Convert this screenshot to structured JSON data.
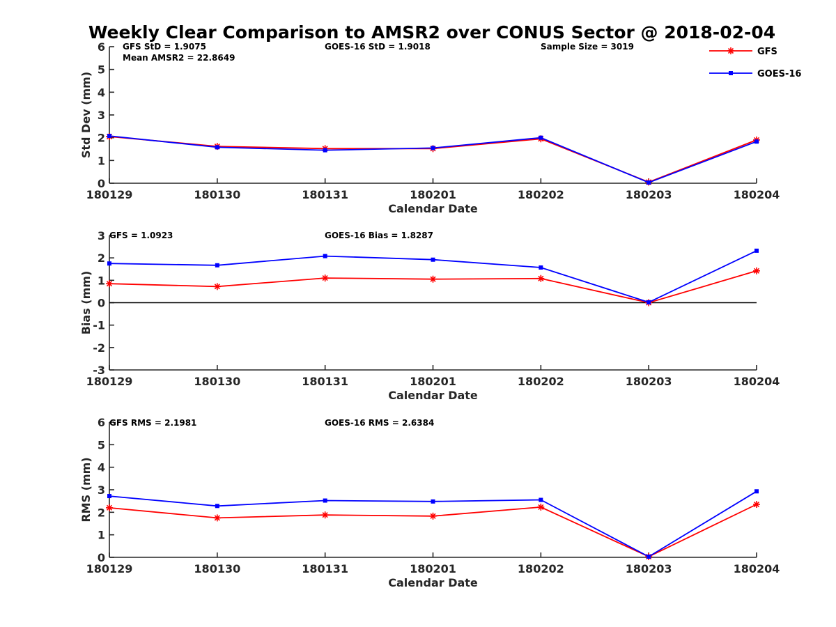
{
  "figure_title": "Weekly Clear Comparison to AMSR2 over CONUS Sector @ 2018-02-04",
  "colors": {
    "gfs": "#ff0000",
    "goes16": "#0000ff",
    "axis": "#262626",
    "zero_line": "#000000"
  },
  "legend": {
    "placement": "top-right",
    "items": [
      {
        "label": "GFS",
        "marker": "asterisk",
        "color": "#ff0000"
      },
      {
        "label": "GOES-16",
        "marker": "square",
        "color": "#0000ff"
      }
    ]
  },
  "chart_data": [
    {
      "type": "line",
      "xlabel": "Calendar Date",
      "ylabel": "Std Dev (mm)",
      "categories": [
        "180129",
        "180130",
        "180131",
        "180201",
        "180202",
        "180203",
        "180204"
      ],
      "ylim": [
        0,
        6
      ],
      "yticks": [
        "0",
        "1",
        "2",
        "3",
        "4",
        "5",
        "6"
      ],
      "series": [
        {
          "name": "GFS",
          "values": [
            2.05,
            1.62,
            1.52,
            1.52,
            1.95,
            0.05,
            1.9
          ]
        },
        {
          "name": "GOES-16",
          "values": [
            2.08,
            1.58,
            1.45,
            1.55,
            2.0,
            0.03,
            1.83
          ]
        }
      ],
      "zero_line": false,
      "annotations": [
        "GFS StD = 1.9075",
        "Mean AMSR2 = 22.8649",
        "GOES-16 StD = 1.9018",
        "Sample Size = 3019"
      ]
    },
    {
      "type": "line",
      "xlabel": "Calendar Date",
      "ylabel": "Bias (mm)",
      "categories": [
        "180129",
        "180130",
        "180131",
        "180201",
        "180202",
        "180203",
        "180204"
      ],
      "ylim": [
        -3,
        3
      ],
      "yticks": [
        "-3",
        "-2",
        "-1",
        "0",
        "1",
        "2",
        "3"
      ],
      "series": [
        {
          "name": "GFS",
          "values": [
            0.85,
            0.72,
            1.1,
            1.05,
            1.08,
            0.0,
            1.42
          ]
        },
        {
          "name": "GOES-16",
          "values": [
            1.75,
            1.67,
            2.08,
            1.92,
            1.57,
            0.02,
            2.32
          ]
        }
      ],
      "zero_line": true,
      "annotations": [
        "GFS = 1.0923",
        "GOES-16 Bias  = 1.8287"
      ]
    },
    {
      "type": "line",
      "xlabel": "Calendar Date",
      "ylabel": "RMS (mm)",
      "categories": [
        "180129",
        "180130",
        "180131",
        "180201",
        "180202",
        "180203",
        "180204"
      ],
      "ylim": [
        0,
        6
      ],
      "yticks": [
        "0",
        "1",
        "2",
        "3",
        "4",
        "5",
        "6"
      ],
      "series": [
        {
          "name": "GFS",
          "values": [
            2.2,
            1.75,
            1.88,
            1.83,
            2.23,
            0.03,
            2.35
          ]
        },
        {
          "name": "GOES-16",
          "values": [
            2.72,
            2.28,
            2.52,
            2.48,
            2.55,
            0.03,
            2.93
          ]
        }
      ],
      "zero_line": false,
      "annotations": [
        "GFS RMS = 2.1981",
        "GOES-16 RMS = 2.6384"
      ]
    }
  ]
}
